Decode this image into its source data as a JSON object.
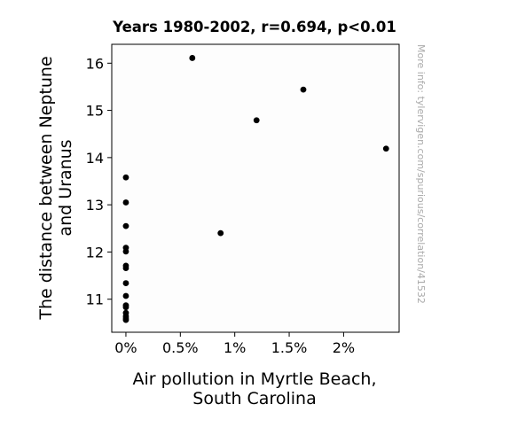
{
  "chart_data": {
    "type": "scatter",
    "title": "Years 1980-2002, r=0.694, p<0.01",
    "xlabel_lines": [
      "Air pollution in Myrtle Beach,",
      "South Carolina"
    ],
    "ylabel_lines": [
      "The distance between Neptune",
      "and Uranus"
    ],
    "xlim": [
      -0.0013,
      0.0251
    ],
    "ylim": [
      10.3,
      16.4
    ],
    "xticks": [
      {
        "value": 0,
        "label": "0%"
      },
      {
        "value": 0.005,
        "label": "0.5%"
      },
      {
        "value": 0.01,
        "label": "1%"
      },
      {
        "value": 0.015,
        "label": "1.5%"
      },
      {
        "value": 0.02,
        "label": "2%"
      }
    ],
    "yticks": [
      {
        "value": 11,
        "label": "11"
      },
      {
        "value": 12,
        "label": "12"
      },
      {
        "value": 13,
        "label": "13"
      },
      {
        "value": 14,
        "label": "14"
      },
      {
        "value": 15,
        "label": "15"
      },
      {
        "value": 16,
        "label": "16"
      }
    ],
    "points": [
      {
        "x": 0,
        "y": 13.58
      },
      {
        "x": 0,
        "y": 13.05
      },
      {
        "x": 0,
        "y": 12.55
      },
      {
        "x": 0,
        "y": 12.09
      },
      {
        "x": 0,
        "y": 12.01
      },
      {
        "x": 0,
        "y": 11.71
      },
      {
        "x": 0,
        "y": 11.66
      },
      {
        "x": 0,
        "y": 11.34
      },
      {
        "x": 0,
        "y": 11.07
      },
      {
        "x": 0,
        "y": 10.87
      },
      {
        "x": 0,
        "y": 10.83
      },
      {
        "x": 0,
        "y": 10.71
      },
      {
        "x": 0,
        "y": 10.64
      },
      {
        "x": 0,
        "y": 10.6
      },
      {
        "x": 0,
        "y": 10.56
      },
      {
        "x": 0.0061,
        "y": 16.11
      },
      {
        "x": 0.0087,
        "y": 12.4
      },
      {
        "x": 0.012,
        "y": 14.79
      },
      {
        "x": 0.0163,
        "y": 15.44
      },
      {
        "x": 0.0239,
        "y": 14.19
      }
    ],
    "point_color": "#000000",
    "grid": false,
    "legend": "none"
  },
  "watermark": "More info: tylervigen.com/spurious/correlation/41532"
}
